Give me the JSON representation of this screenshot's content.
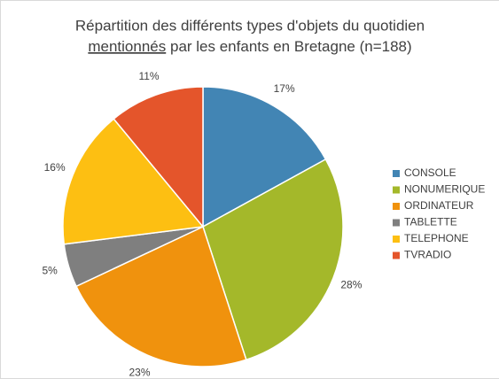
{
  "chart_data": {
    "type": "pie",
    "title": [
      "Répartition des différents types d'objets du quotidien",
      "mentionnés",
      "par les enfants en  Bretagne (n=188)"
    ],
    "categories": [
      "CONSOLE",
      "NONUMERIQUE",
      "ORDINATEUR",
      "TABLETTE",
      "TELEPHONE",
      "TVRADIO"
    ],
    "values": [
      17,
      28,
      23,
      5,
      16,
      11
    ],
    "value_labels": [
      "17%",
      "28%",
      "23%",
      "5%",
      "16%",
      "11%"
    ],
    "colors": [
      "#4285b4",
      "#a4b82a",
      "#f0920d",
      "#7f7f7f",
      "#fdbf12",
      "#e4552b"
    ],
    "legend": "right"
  }
}
